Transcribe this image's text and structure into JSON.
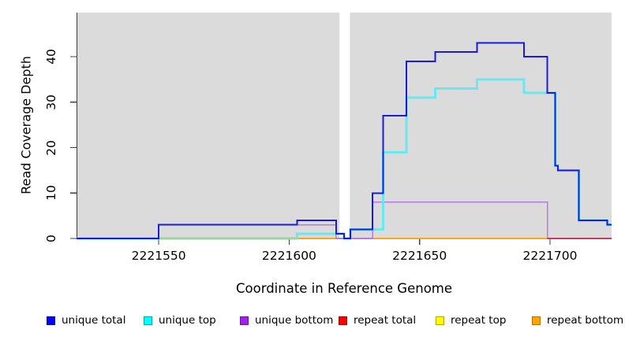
{
  "chart_data": {
    "type": "line",
    "title": "",
    "xlabel": "Coordinate in Reference Genome",
    "ylabel": "Read Coverage Depth",
    "xlim": [
      2221518.5,
      2221723.6
    ],
    "ylim": [
      0,
      49.7
    ],
    "x_ticks": [
      2221550,
      2221600,
      2221650,
      2221700
    ],
    "x_tick_labels": [
      "2221550",
      "2221600",
      "2221650",
      "2221700"
    ],
    "y_ticks": [
      0,
      10,
      20,
      30,
      40
    ],
    "y_tick_labels": [
      "0",
      "10",
      "20",
      "30",
      "40"
    ],
    "grid": false,
    "panel_bg": "#dbdbdb",
    "axis_color": "#404040",
    "gap_region": {
      "x_start": 2221619.3,
      "x_end": 2221623.3,
      "color": "#ffffff"
    },
    "series": [
      {
        "name": "unique total",
        "color": "#1a1ae0",
        "width": 2,
        "steps": [
          [
            2221518.5,
            0
          ],
          [
            2221550,
            3
          ],
          [
            2221603,
            4
          ],
          [
            2221618,
            1
          ],
          [
            2221621,
            0
          ],
          [
            2221623.5,
            2
          ],
          [
            2221632,
            10
          ],
          [
            2221636,
            27
          ],
          [
            2221645,
            39
          ],
          [
            2221656,
            41
          ],
          [
            2221672,
            43
          ],
          [
            2221690,
            40
          ],
          [
            2221699,
            32
          ],
          [
            2221702,
            16
          ],
          [
            2221703,
            15
          ],
          [
            2221711,
            4
          ],
          [
            2221722,
            3
          ]
        ]
      },
      {
        "name": "unique top",
        "color": "#6ce6f0",
        "width": 3,
        "steps": [
          [
            2221518.5,
            0
          ],
          [
            2221603,
            1
          ],
          [
            2221621,
            0
          ],
          [
            2221623.5,
            2
          ],
          [
            2221636,
            19
          ],
          [
            2221645,
            31
          ],
          [
            2221656,
            33
          ],
          [
            2221672,
            35
          ],
          [
            2221690,
            32
          ],
          [
            2221702,
            16
          ],
          [
            2221703,
            15
          ],
          [
            2221711,
            4
          ],
          [
            2221722,
            3
          ]
        ]
      },
      {
        "name": "unique bottom",
        "color": "#b87ae0",
        "width": 1.6,
        "steps": [
          [
            2221518.5,
            0
          ],
          [
            2221550,
            3
          ],
          [
            2221618,
            0
          ],
          [
            2221632,
            8
          ],
          [
            2221699,
            0
          ]
        ]
      },
      {
        "name": "repeat total",
        "color": "#e00000",
        "width": 2,
        "steps": [
          [
            2221518.5,
            0
          ]
        ]
      },
      {
        "name": "repeat top",
        "color": "#f0f000",
        "width": 2,
        "steps": [
          [
            2221518.5,
            0
          ]
        ]
      },
      {
        "name": "repeat bottom",
        "color": "#ffa318",
        "width": 2.2,
        "steps": [
          [
            2221518.5,
            0
          ]
        ]
      }
    ],
    "baseline_overlays": [
      {
        "name": "yellow-cyan-blend",
        "color": "#9cd49c",
        "width": 3,
        "x_start": 2221550,
        "x_end": 2221603
      },
      {
        "name": "repeat-total-visible",
        "color": "#c83a66",
        "width": 2,
        "x_start": 2221699,
        "x_end": 2221723.6
      }
    ],
    "draw_order": [
      "repeat total",
      "repeat top",
      "repeat bottom",
      "unique bottom",
      "unique top",
      "overlay:yellow-cyan-blend",
      "overlay:repeat-total-visible",
      "unique total"
    ],
    "legend_position": "bottom"
  },
  "legend": {
    "items": [
      {
        "label": "unique total",
        "fill": "#0000ff",
        "border": "#0000a8"
      },
      {
        "label": "unique top",
        "fill": "#00ffff",
        "border": "#00a8b4"
      },
      {
        "label": "unique bottom",
        "fill": "#a020f0",
        "border": "#6a14a0"
      },
      {
        "label": "repeat total",
        "fill": "#ff0000",
        "border": "#a80000"
      },
      {
        "label": "repeat top",
        "fill": "#ffff00",
        "border": "#b4a800"
      },
      {
        "label": "repeat bottom",
        "fill": "#ffa500",
        "border": "#b47400"
      }
    ]
  }
}
